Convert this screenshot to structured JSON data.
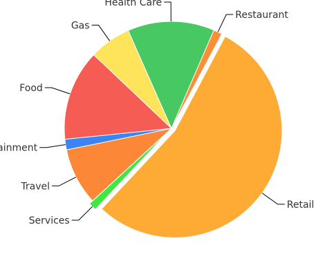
{
  "chart_data": {
    "type": "pie",
    "slices": [
      {
        "label": "Retail",
        "value": 54.2,
        "color": "#FDAB35"
      },
      {
        "label": "Services",
        "value": 1.2,
        "color": "#3FE83F"
      },
      {
        "label": "Travel",
        "value": 8.6,
        "color": "#FC8736"
      },
      {
        "label": "Entertainment",
        "value": 1.6,
        "color": "#3A84F3"
      },
      {
        "label": "Food",
        "value": 13.7,
        "color": "#F55C54"
      },
      {
        "label": "Gas",
        "value": 6.3,
        "color": "#FDE45A"
      },
      {
        "label": "Health Care",
        "value": 13.1,
        "color": "#48C863"
      },
      {
        "label": "Restaurant",
        "value": 1.3,
        "color": "#FC8F36"
      }
    ],
    "exploded": [
      "Retail",
      "Services"
    ]
  }
}
